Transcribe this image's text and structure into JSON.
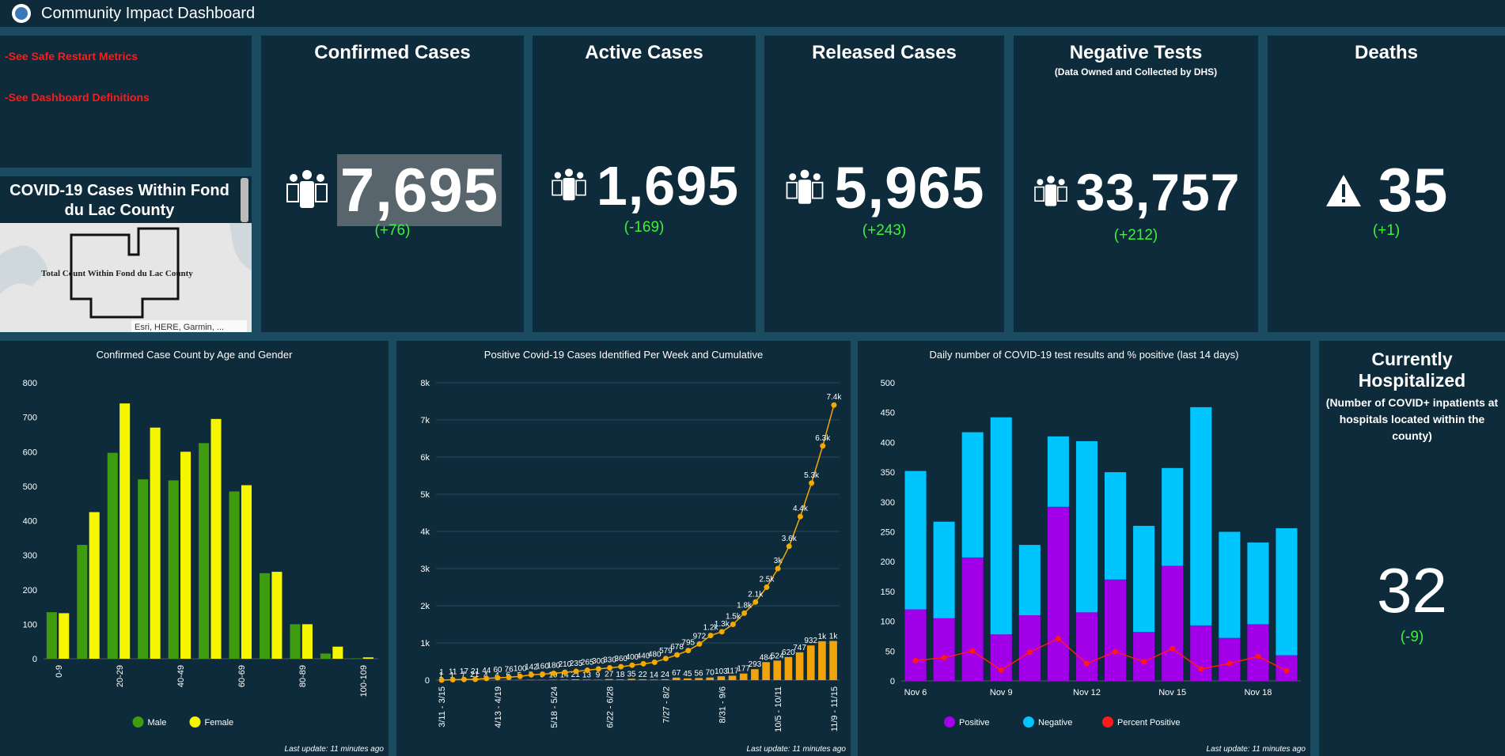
{
  "header": {
    "title": "Community Impact Dashboard"
  },
  "links": [
    "-See Safe Restart Metrics",
    "-See Dashboard Definitions"
  ],
  "map": {
    "title": "COVID-19 Cases Within Fond du Lac County",
    "label": "Total Count Within Fond du Lac County",
    "attribution": "Esri, HERE, Garmin, ..."
  },
  "indicators": [
    {
      "title": "Confirmed Cases",
      "value": "7,695",
      "change": "(+76)"
    },
    {
      "title": "Active Cases",
      "value": "1,695",
      "change": "(-169)"
    },
    {
      "title": "Released Cases",
      "value": "5,965",
      "change": "(+243)"
    },
    {
      "title": "Negative Tests",
      "subtitle": "(Data Owned and Collected by DHS)",
      "value": "33,757",
      "change": "(+212)"
    },
    {
      "title": "Deaths",
      "value": "35",
      "change": "(+1)"
    }
  ],
  "hospitalized": {
    "title": "Currently Hospitalized",
    "subtitle": "(Number of COVID+ inpatients at hospitals located within the county)",
    "value": "32",
    "change": "(-9)"
  },
  "chart_data": [
    {
      "type": "bar",
      "title": "Confirmed Case Count by Age and Gender",
      "footnote": "Last update: 11 minutes ago",
      "categories": [
        "0-9",
        null,
        "20-29",
        null,
        "40-49",
        null,
        "60-69",
        null,
        "80-89",
        null,
        "100-109"
      ],
      "series": [
        {
          "name": "Male",
          "color": "#3e9c0e",
          "type": "bar",
          "values": [
            135,
            330,
            597,
            520,
            517,
            625,
            485,
            248,
            100,
            15,
            1
          ]
        },
        {
          "name": "Female",
          "color": "#f6f600",
          "type": "bar",
          "values": [
            132,
            425,
            740,
            670,
            600,
            695,
            503,
            252,
            100,
            35,
            4
          ]
        }
      ],
      "ylim": [
        0,
        800
      ],
      "yticks": [
        0,
        100,
        200,
        300,
        400,
        500,
        600,
        700,
        800
      ],
      "grid": false,
      "legend": "bottom"
    },
    {
      "type": "bar",
      "title": "Positive Covid-19 Cases Identified Per Week and Cumulative",
      "footnote": "Last update: 11 minutes ago",
      "categories": [
        "3/11 - 3/15",
        null,
        null,
        null,
        null,
        "4/13 - 4/19",
        null,
        null,
        null,
        null,
        "5/18 - 5/24",
        null,
        null,
        null,
        null,
        "6/22 - 6/28",
        null,
        null,
        null,
        null,
        "7/27 - 8/2",
        null,
        null,
        null,
        null,
        "8/31 - 9/6",
        null,
        null,
        null,
        null,
        "10/5 - 10/11",
        null,
        null,
        null,
        null,
        "11/9 - 11/15"
      ],
      "series": [
        {
          "color": "#f0a30a",
          "type": "bar",
          "values": [
            1,
            1,
            7,
            21,
            4,
            4,
            6,
            5,
            7,
            6,
            10,
            14,
            21,
            13,
            9,
            27,
            18,
            35,
            22,
            14,
            24,
            67,
            45,
            56,
            70,
            103,
            117,
            177,
            293,
            484,
            524,
            620,
            747,
            932,
            1045,
            1053
          ],
          "value_labels": [
            "1",
            "1",
            "7",
            "21",
            "4",
            "4",
            "6",
            "5",
            "7",
            "6",
            "10",
            "14",
            "21",
            "13",
            "9",
            "27",
            "18",
            "35",
            "22",
            "14",
            "24",
            "67",
            "45",
            "56",
            "70",
            "103",
            "117",
            "177",
            "293",
            "484",
            "524",
            "620",
            "747",
            "932",
            "1k",
            "1k"
          ]
        },
        {
          "color": "#f5a800",
          "type": "line",
          "values": [
            1,
            11,
            17,
            21,
            44,
            60,
            76,
            100,
            142,
            160,
            180,
            210,
            235,
            265,
            300,
            330,
            360,
            400,
            440,
            480,
            579,
            678,
            795,
            972,
            1200,
            1300,
            1500,
            1800,
            2100,
            2500,
            3000,
            3600,
            4400,
            5300,
            6300,
            7400
          ],
          "value_labels": [
            "1",
            "11",
            "17",
            "21",
            "44",
            "60",
            "76",
            "100",
            "142",
            "160",
            "180",
            "210",
            "235",
            "265",
            "300",
            "330",
            "360",
            "400",
            "440",
            "480",
            "579",
            "678",
            "795",
            "972",
            "1.2k",
            "1.3k",
            "1.5k",
            "1.8k",
            "2.1k",
            "2.5k",
            "3k",
            "3.6k",
            "4.4k",
            "5.3k",
            "6.3k",
            "7.4k"
          ]
        }
      ],
      "ylim": [
        0,
        8000
      ],
      "yticks": [
        0,
        {
          "value": 1000,
          "label": "1k"
        },
        {
          "value": 2000,
          "label": "2k"
        },
        {
          "value": 3000,
          "label": "3k"
        },
        {
          "value": 4000,
          "label": "4k"
        },
        {
          "value": 5000,
          "label": "5k"
        },
        {
          "value": 6000,
          "label": "6k"
        },
        {
          "value": 7000,
          "label": "7k"
        },
        {
          "value": 8000,
          "label": "8k"
        }
      ],
      "grid": true
    },
    {
      "type": "stacked_bar",
      "title": "Daily number of COVID-19 test results and % positive (last 14 days)",
      "footnote": "Last update: 11 minutes ago",
      "categories": [
        "Nov 6",
        null,
        null,
        "Nov 9",
        null,
        null,
        "Nov 12",
        null,
        null,
        "Nov 15",
        null,
        null,
        "Nov 18",
        null
      ],
      "series": [
        {
          "name": "Positive",
          "color": "#a100e8",
          "type": "bar",
          "values": [
            120,
            105,
            207,
            78,
            110,
            292,
            115,
            170,
            82,
            193,
            93,
            72,
            95,
            43
          ]
        },
        {
          "name": "Negative",
          "color": "#00c5ff",
          "type": "bar",
          "values": [
            232,
            162,
            210,
            364,
            118,
            118,
            287,
            180,
            178,
            164,
            366,
            178,
            137,
            213
          ]
        },
        {
          "name": "Percent Positive",
          "color": "#ff1a1a",
          "type": "line",
          "values": [
            34,
            39,
            50,
            18,
            48,
            71,
            29,
            49,
            32,
            54,
            20,
            29,
            41,
            17
          ]
        }
      ],
      "ylim": [
        0,
        500
      ],
      "yticks": [
        0,
        50,
        100,
        150,
        200,
        250,
        300,
        350,
        400,
        450,
        500
      ],
      "grid": false,
      "legend": "bottom"
    }
  ]
}
